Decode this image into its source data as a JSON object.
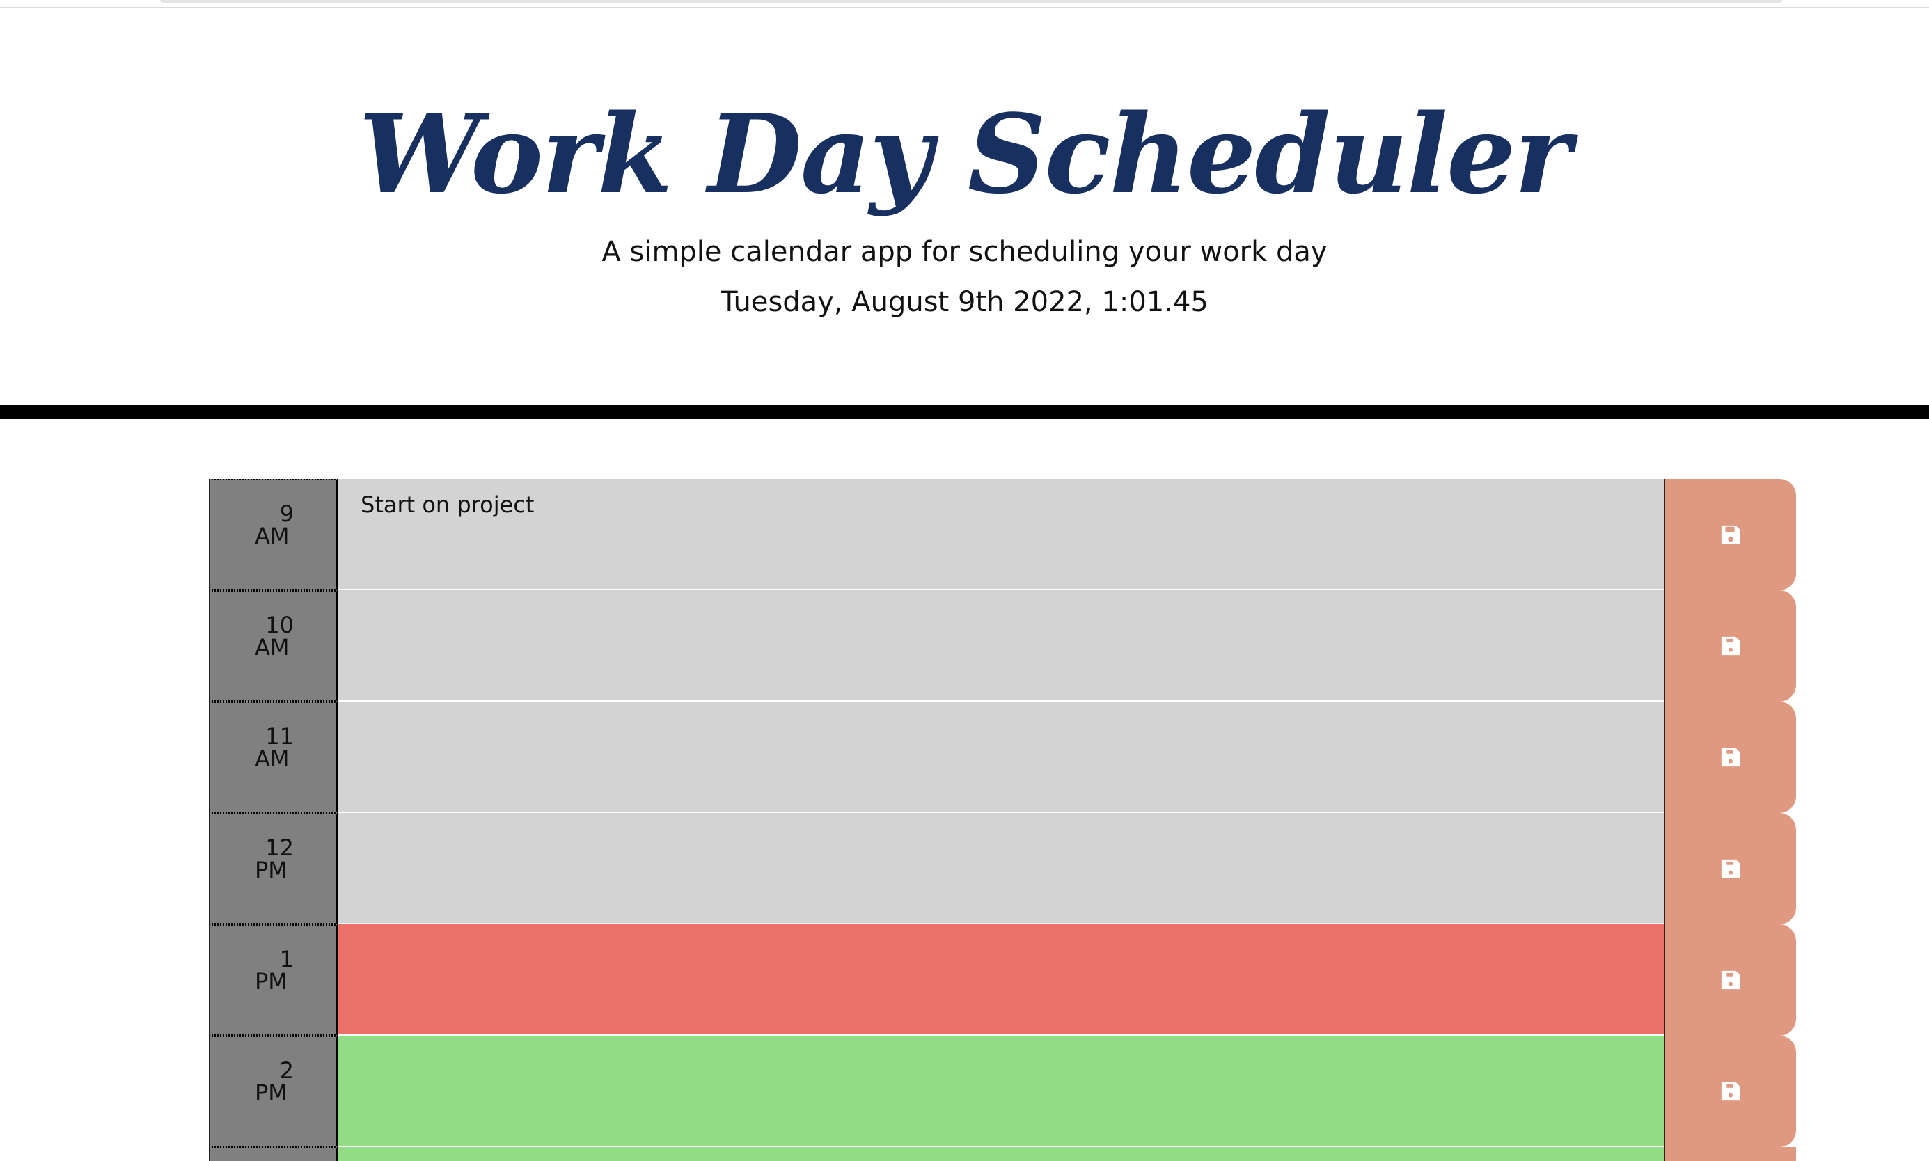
{
  "header": {
    "title": "Work Day Scheduler",
    "subtitle": "A simple calendar app for scheduling your work day",
    "current_datetime": "Tuesday, August 9th 2022, 1:01.45"
  },
  "colors": {
    "title": "#17305f",
    "past": "#d3d3d3",
    "present": "#ec7169",
    "future": "#91dc84",
    "save_button": "#df9980",
    "hour_column": "#808080"
  },
  "schedule": {
    "rows": [
      {
        "hour": "9",
        "period": "AM",
        "text": "Start on project",
        "status": "past",
        "save_icon": "save-icon"
      },
      {
        "hour": "10",
        "period": "AM",
        "text": "",
        "status": "past",
        "save_icon": "save-icon"
      },
      {
        "hour": "11",
        "period": "AM",
        "text": "",
        "status": "past",
        "save_icon": "save-icon"
      },
      {
        "hour": "12",
        "period": "PM",
        "text": "",
        "status": "past",
        "save_icon": "save-icon"
      },
      {
        "hour": "1",
        "period": "PM",
        "text": "",
        "status": "present",
        "save_icon": "save-icon"
      },
      {
        "hour": "2",
        "period": "PM",
        "text": "",
        "status": "future",
        "save_icon": "save-icon"
      }
    ]
  }
}
